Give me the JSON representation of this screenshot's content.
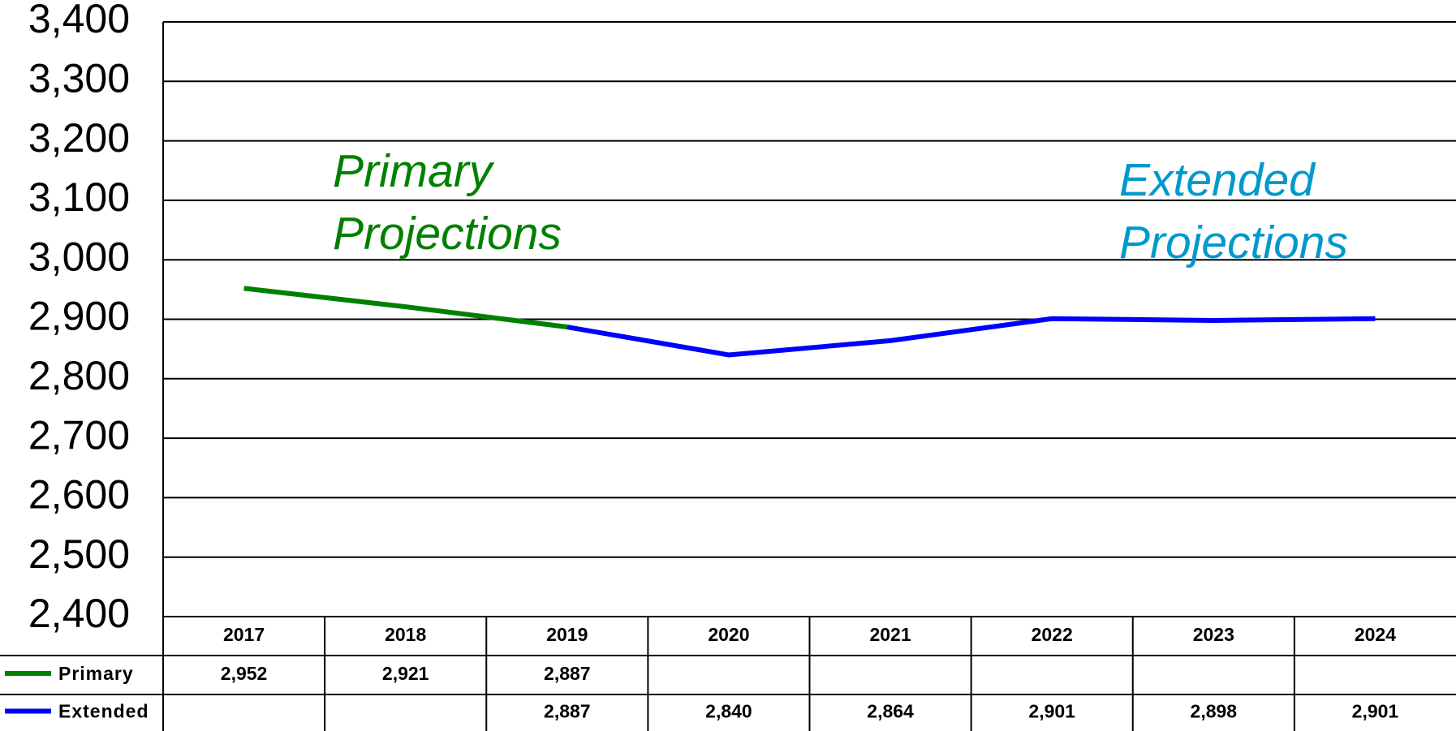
{
  "chart_data": {
    "type": "line",
    "categories": [
      "2017",
      "2018",
      "2019",
      "2020",
      "2021",
      "2022",
      "2023",
      "2024"
    ],
    "series": [
      {
        "name": "Primary",
        "color": "#008000",
        "values": [
          2952,
          2921,
          2887,
          null,
          null,
          null,
          null,
          null
        ],
        "value_labels": [
          "2,952",
          "2,921",
          "2,887",
          null,
          null,
          null,
          null,
          null
        ]
      },
      {
        "name": "Extended",
        "color": "#0000ff",
        "values": [
          null,
          null,
          2887,
          2840,
          2864,
          2901,
          2898,
          2901
        ],
        "value_labels": [
          null,
          null,
          "2,887",
          "2,840",
          "2,864",
          "2,901",
          "2,898",
          "2,901"
        ]
      }
    ],
    "ylim": [
      2400,
      3400
    ],
    "yticks": [
      {
        "value": 2400,
        "label": "2,400"
      },
      {
        "value": 2500,
        "label": "2,500"
      },
      {
        "value": 2600,
        "label": "2,600"
      },
      {
        "value": 2700,
        "label": "2,700"
      },
      {
        "value": 2800,
        "label": "2,800"
      },
      {
        "value": 2900,
        "label": "2,900"
      },
      {
        "value": 3000,
        "label": "3,000"
      },
      {
        "value": 3100,
        "label": "3,100"
      },
      {
        "value": 3200,
        "label": "3,200"
      },
      {
        "value": 3300,
        "label": "3,300"
      },
      {
        "value": 3400,
        "label": "3,400"
      }
    ],
    "grid": true,
    "annotations": [
      {
        "lines": [
          "Primary",
          "Projections"
        ],
        "color": "#008000"
      },
      {
        "lines": [
          "Extended",
          "Projections"
        ],
        "color": "#0099cc"
      }
    ]
  }
}
